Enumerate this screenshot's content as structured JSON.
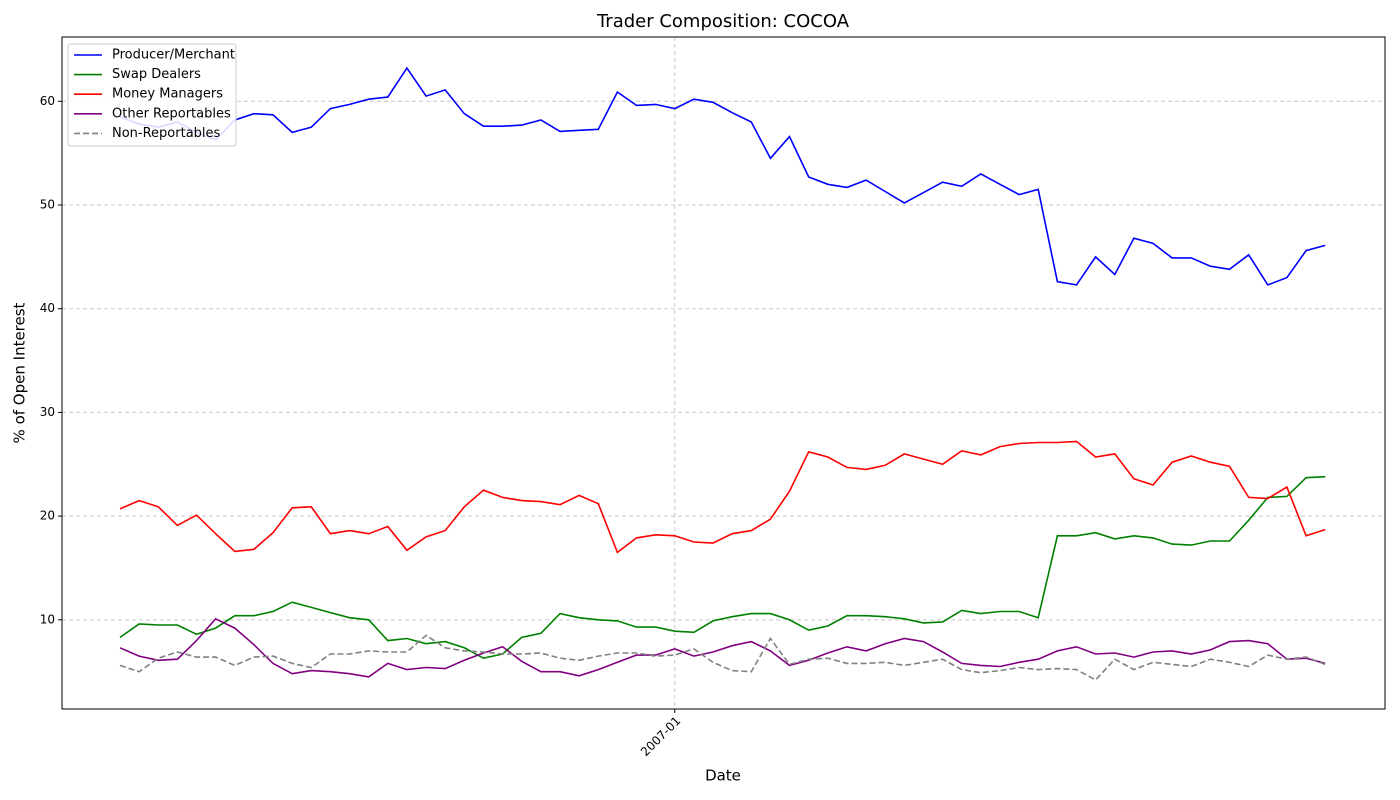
{
  "chart_data": {
    "type": "line",
    "title": "Trader Composition: COCOA",
    "x_label": "Date",
    "y_label": "% of Open Interest",
    "categories": [
      null,
      null,
      null,
      null,
      null,
      null,
      null,
      null,
      null,
      null,
      null,
      null,
      null,
      null,
      null,
      null,
      null,
      null,
      null,
      null,
      null,
      null,
      null,
      null,
      null,
      null,
      null,
      null,
      null,
      "2007-01",
      null,
      null,
      null,
      null,
      null,
      null,
      null,
      null,
      null,
      null,
      null,
      null,
      null,
      null,
      null,
      null,
      null,
      null,
      null,
      null,
      null,
      null,
      null,
      null,
      null,
      null,
      null,
      null,
      null,
      null,
      null,
      null,
      null,
      null
    ],
    "ylim": [
      1.4,
      66.2
    ],
    "yticks": [
      10,
      20,
      30,
      40,
      50,
      60
    ],
    "grid": true,
    "legend": "upper-left",
    "series": [
      {
        "name": "Producer/Merchant",
        "color": "#0000ff",
        "dash": false,
        "values": [
          58.5,
          57.8,
          57.5,
          58,
          57,
          56.3,
          58.2,
          58.8,
          58.7,
          57,
          57.5,
          59.3,
          59.7,
          60.2,
          60.4,
          63.2,
          60.5,
          61.1,
          58.8,
          57.6,
          57.6,
          57.7,
          58.2,
          57.1,
          57.2,
          57.3,
          60.9,
          59.6,
          59.7,
          59.3,
          60.2,
          59.9,
          58.9,
          58,
          54.5,
          56.6,
          52.7,
          52,
          51.7,
          52.4,
          51.3,
          50.2,
          51.2,
          52.2,
          51.8,
          53,
          52,
          51,
          51.5,
          42.6,
          42.3,
          45,
          43.3,
          46.8,
          46.3,
          44.9,
          44.9,
          44.1,
          43.8,
          45.2,
          42.3,
          43,
          45.6,
          46.1
        ]
      },
      {
        "name": "Swap Dealers",
        "color": "#008000",
        "dash": false,
        "values": [
          8.3,
          9.6,
          9.5,
          9.5,
          8.6,
          9.2,
          10.4,
          10.4,
          10.8,
          11.7,
          11.2,
          10.7,
          10.2,
          10,
          8,
          8.2,
          7.7,
          7.9,
          7.3,
          6.3,
          6.7,
          8.3,
          8.7,
          10.6,
          10.2,
          10,
          9.9,
          9.3,
          9.3,
          8.9,
          8.8,
          9.9,
          10.3,
          10.6,
          10.6,
          10,
          9,
          9.4,
          10.4,
          10.4,
          10.3,
          10.1,
          9.7,
          9.8,
          10.9,
          10.6,
          10.8,
          10.8,
          10.2,
          18.1,
          18.1,
          18.4,
          17.8,
          18.1,
          17.9,
          17.3,
          17.2,
          17.6,
          17.6,
          19.6,
          21.8,
          21.9,
          23.7,
          23.8
        ]
      },
      {
        "name": "Money Managers",
        "color": "#ff0000",
        "dash": false,
        "values": [
          20.7,
          21.5,
          20.9,
          19.1,
          20.1,
          18.3,
          16.6,
          16.8,
          18.4,
          20.8,
          20.9,
          18.3,
          18.6,
          18.3,
          19,
          16.7,
          18,
          18.6,
          20.9,
          22.5,
          21.8,
          21.5,
          21.4,
          21.1,
          22,
          21.2,
          16.5,
          17.9,
          18.2,
          18.1,
          17.5,
          17.4,
          18.3,
          18.6,
          19.7,
          22.4,
          26.2,
          25.7,
          24.7,
          24.5,
          24.9,
          26,
          25.5,
          25,
          26.3,
          25.9,
          26.7,
          27,
          27.1,
          27.1,
          27.2,
          25.7,
          26,
          23.6,
          23,
          25.2,
          25.8,
          25.2,
          24.8,
          21.8,
          21.7,
          22.8,
          18.1,
          18.7
        ]
      },
      {
        "name": "Other Reportables",
        "color": "#800080",
        "dash": false,
        "values": [
          7.3,
          6.5,
          6.1,
          6.2,
          8,
          10.1,
          9.2,
          7.6,
          5.8,
          4.8,
          5.1,
          5,
          4.8,
          4.5,
          5.8,
          5.2,
          5.4,
          5.3,
          6.1,
          6.8,
          7.4,
          6,
          5,
          5,
          4.6,
          5.2,
          5.9,
          6.6,
          6.6,
          7.2,
          6.5,
          6.9,
          7.5,
          7.9,
          7,
          5.6,
          6.1,
          6.8,
          7.4,
          7,
          7.7,
          8.2,
          7.9,
          6.9,
          5.8,
          5.6,
          5.5,
          5.9,
          6.2,
          7,
          7.4,
          6.7,
          6.8,
          6.4,
          6.9,
          7,
          6.7,
          7.1,
          7.9,
          8,
          7.7,
          6.2,
          6.3,
          5.8
        ]
      },
      {
        "name": "Non-Reportables",
        "color": "#808080",
        "dash": true,
        "values": [
          5.6,
          5,
          6.3,
          6.9,
          6.4,
          6.4,
          5.6,
          6.4,
          6.5,
          5.8,
          5.4,
          6.7,
          6.7,
          7,
          6.9,
          6.9,
          8.5,
          7.3,
          7,
          6.9,
          6.7,
          6.7,
          6.8,
          6.3,
          6.1,
          6.5,
          6.8,
          6.8,
          6.5,
          6.6,
          7.2,
          5.9,
          5.1,
          5,
          8.2,
          5.7,
          6.2,
          6.3,
          5.8,
          5.8,
          5.9,
          5.6,
          5.9,
          6.2,
          5.2,
          4.9,
          5.1,
          5.4,
          5.2,
          5.3,
          5.2,
          4.2,
          6.2,
          5.2,
          5.9,
          5.7,
          5.5,
          6.2,
          5.9,
          5.5,
          6.6,
          6.2,
          6.4,
          5.7
        ]
      }
    ]
  }
}
